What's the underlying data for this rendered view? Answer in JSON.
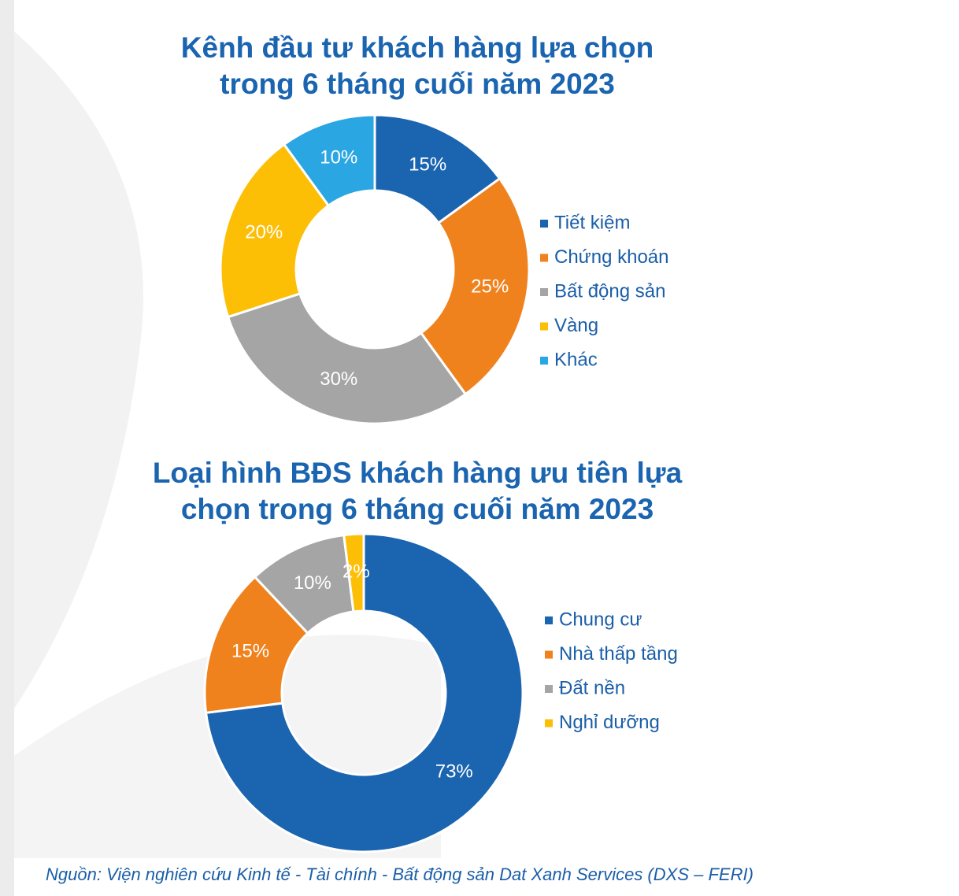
{
  "chart_data": [
    {
      "type": "donut",
      "title": "Kênh đầu tư khách hàng lựa chọn\ntrong 6 tháng cuối năm 2023",
      "categories": [
        "Tiết kiệm",
        "Chứng khoán",
        "Bất động sản",
        "Vàng",
        "Khác"
      ],
      "values": [
        15,
        25,
        30,
        20,
        10
      ],
      "value_labels": [
        "15%",
        "25%",
        "30%",
        "20%",
        "10%"
      ],
      "colors": [
        "#1a64b0",
        "#f0821e",
        "#a5a5a5",
        "#fdbe06",
        "#2aa6e3"
      ],
      "legend": "right"
    },
    {
      "type": "donut",
      "title": "Loại hình BĐS khách hàng ưu tiên lựa\nchọn trong 6 tháng cuối năm 2023",
      "categories": [
        "Chung cư",
        "Nhà thấp tầng",
        "Đất nền",
        "Nghỉ dưỡng"
      ],
      "values": [
        73,
        15,
        10,
        2
      ],
      "value_labels": [
        "73%",
        "15%",
        "10%",
        "2%"
      ],
      "colors": [
        "#1a64b0",
        "#f0821e",
        "#a5a5a5",
        "#fdbe06"
      ],
      "legend": "right"
    }
  ],
  "source": "Nguồn: Viện nghiên cứu Kinh tế - Tài chính - Bất động sản Dat Xanh Services (DXS – FERI)"
}
